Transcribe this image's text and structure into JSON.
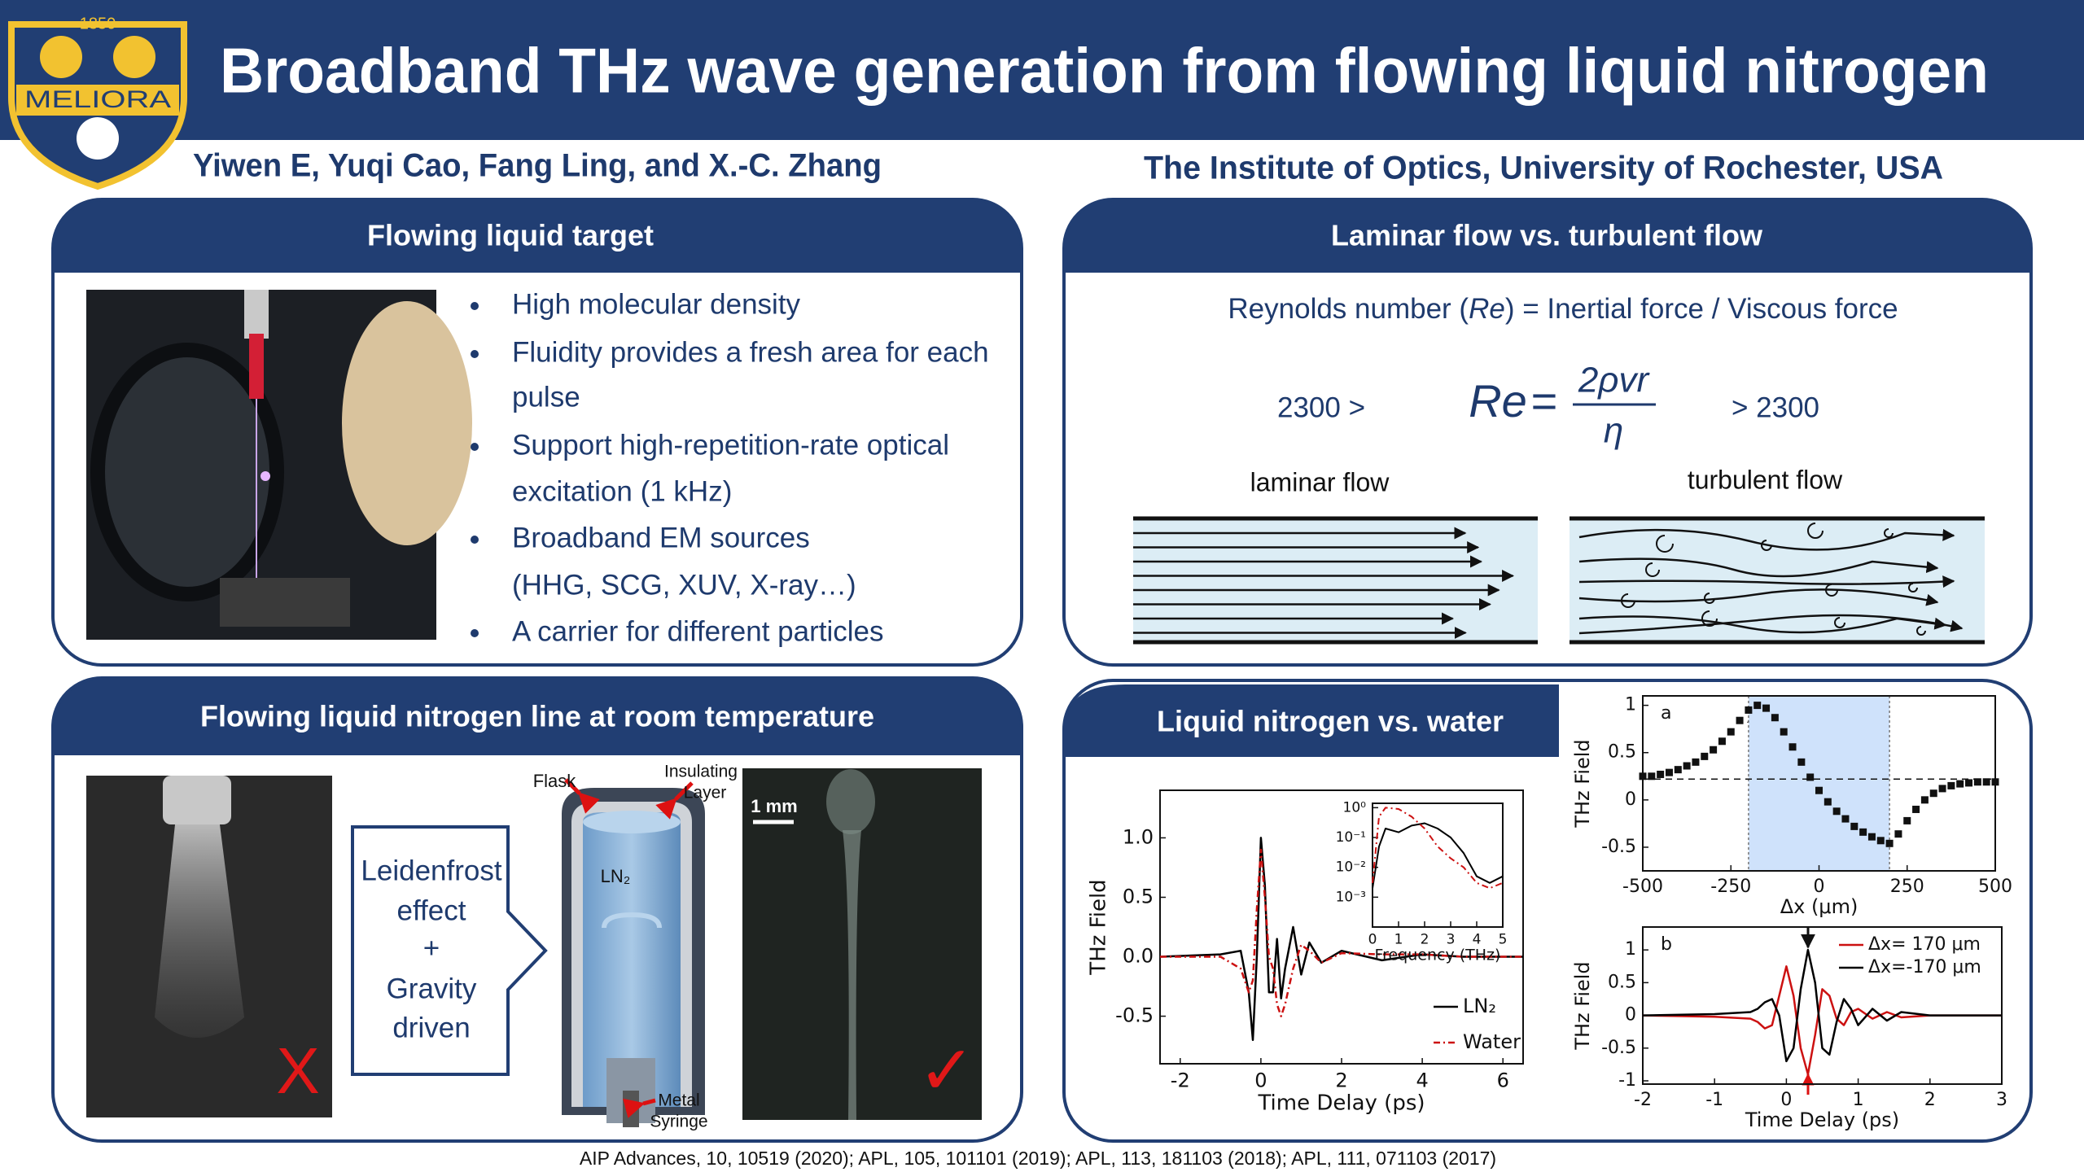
{
  "logo": {
    "year": "1850",
    "motto": "MELIORA"
  },
  "header": {
    "title": "Broadband THz wave generation from flowing liquid nitrogen",
    "authors": "Yiwen E, Yuqi Cao, Fang Ling, and X.-C. Zhang",
    "affiliation": "The Institute of Optics, University of Rochester, USA"
  },
  "panels": {
    "target": {
      "heading": "Flowing liquid target",
      "bullets": [
        [
          "High molecular density"
        ],
        [
          "Fluidity provides a fresh area for each",
          "pulse"
        ],
        [
          "Support high-repetition-rate optical",
          "excitation (1 kHz)"
        ],
        [
          "Broadband EM sources",
          "(HHG, SCG, XUV, X-ray…)"
        ],
        [
          "A carrier for different particles"
        ]
      ]
    },
    "flow": {
      "heading": "Laminar flow vs. turbulent flow",
      "reynolds": {
        "before": "Reynolds number (",
        "symbol": "Re",
        "after": ") = Inertial force / Viscous force"
      },
      "laminar_condition": "2300 >",
      "turbulent_condition": "> 2300",
      "equation": {
        "lhs": "Re",
        "equals": "=",
        "numerator": "2ρvr",
        "denominator": "η"
      },
      "laminar_label": "laminar flow",
      "turbulent_label": "turbulent flow"
    },
    "line": {
      "heading": "Flowing liquid nitrogen line at room temperature",
      "mechanism": [
        "Leidenfrost",
        "effect",
        "+",
        "Gravity",
        "driven"
      ],
      "labels": {
        "flask": "Flask",
        "insulating": [
          "Insulating",
          "Layer"
        ],
        "ln2": "LN₂",
        "syringe": [
          "Metal",
          "Syringe"
        ]
      },
      "scale_bar": "1 mm",
      "fail_mark": "X",
      "ok_mark": "✓"
    },
    "comparison": {
      "heading": "Liquid nitrogen vs. water"
    }
  },
  "chart_data": [
    {
      "type": "line",
      "xlabel": "Time Delay (ps)",
      "ylabel": "THz Field",
      "x": [
        -2.5,
        -1,
        -0.5,
        -0.3,
        -0.2,
        -0.1,
        0,
        0.1,
        0.2,
        0.3,
        0.4,
        0.5,
        0.6,
        0.8,
        1,
        1.2,
        1.5,
        2,
        3,
        4,
        5,
        6.5
      ],
      "series": [
        {
          "name": "LN₂",
          "color": "#000000",
          "values": [
            0,
            0.02,
            0.05,
            -0.3,
            -0.7,
            0.0,
            1.0,
            0.6,
            -0.3,
            -0.3,
            0.15,
            -0.35,
            -0.1,
            0.25,
            -0.15,
            0.12,
            -0.05,
            0.05,
            -0.03,
            0.02,
            0,
            0
          ]
        },
        {
          "name": "Water",
          "color": "#cc1111",
          "dash": true,
          "values": [
            0,
            0.0,
            -0.1,
            -0.3,
            -0.2,
            0.4,
            0.9,
            0.5,
            0.0,
            -0.1,
            -0.4,
            -0.5,
            -0.4,
            -0.1,
            0.1,
            0.05,
            -0.05,
            0.03,
            0.02,
            0.02,
            0,
            0
          ]
        }
      ],
      "xlim": [
        -2.5,
        6.5
      ],
      "ylim": [
        -0.9,
        1.4
      ],
      "xticks": [
        -2,
        0,
        2,
        4,
        6
      ],
      "yticks": [
        {
          "value": 1,
          "label": "1.0"
        },
        0.5,
        {
          "value": 0,
          "label": "0.0"
        },
        -0.5
      ],
      "legend": "lower right"
    },
    {
      "type": "line",
      "xlabel": "Frequency (THz)",
      "log_y": true,
      "x": [
        0,
        0.25,
        0.5,
        1,
        1.5,
        2,
        2.5,
        3,
        3.5,
        4,
        4.5,
        5
      ],
      "series": [
        {
          "color": "#000000",
          "values": [
            0.002,
            0.05,
            0.2,
            0.15,
            0.25,
            0.3,
            0.2,
            0.1,
            0.03,
            0.005,
            0.003,
            0.005
          ]
        },
        {
          "color": "#cc1111",
          "dash": true,
          "values": [
            0.003,
            0.5,
            1,
            0.9,
            0.5,
            0.2,
            0.05,
            0.02,
            0.01,
            0.003,
            0.002,
            0.003
          ]
        }
      ],
      "xlim": [
        0,
        5
      ],
      "ylim": [
        0.0001,
        1.4
      ],
      "xticks": [
        0,
        1,
        2,
        3,
        4,
        5
      ],
      "yticks": [
        {
          "value": 1,
          "label": "10⁰"
        },
        {
          "value": 0.1,
          "label": "10⁻¹"
        },
        {
          "value": 0.01,
          "label": "10⁻²"
        },
        {
          "value": 0.001,
          "label": "10⁻³"
        }
      ]
    },
    {
      "type": "scatter",
      "panel_label": "a",
      "xlabel": "Δx (μm)",
      "ylabel": "THz Field",
      "x": [
        -500,
        -475,
        -450,
        -425,
        -400,
        -375,
        -350,
        -325,
        -300,
        -275,
        -250,
        -225,
        -200,
        -175,
        -150,
        -125,
        -100,
        -75,
        -50,
        -25,
        0,
        25,
        50,
        75,
        100,
        125,
        150,
        175,
        200,
        225,
        250,
        275,
        300,
        325,
        350,
        375,
        400,
        425,
        450,
        475,
        500
      ],
      "values": [
        0.25,
        0.25,
        0.27,
        0.29,
        0.32,
        0.36,
        0.4,
        0.46,
        0.53,
        0.62,
        0.72,
        0.84,
        0.95,
        1.0,
        0.97,
        0.87,
        0.72,
        0.56,
        0.4,
        0.24,
        0.1,
        -0.02,
        -0.12,
        -0.2,
        -0.28,
        -0.34,
        -0.39,
        -0.43,
        -0.46,
        -0.36,
        -0.22,
        -0.1,
        0.0,
        0.07,
        0.12,
        0.15,
        0.17,
        0.18,
        0.19,
        0.19,
        0.19
      ],
      "color": "#111111",
      "xlim": [
        -500,
        500
      ],
      "ylim": [
        -0.75,
        1.1
      ],
      "xticks": [
        -500,
        -250,
        0,
        250,
        500
      ],
      "yticks": [
        1,
        0.5,
        0,
        -0.5
      ],
      "reference_y": 0.22,
      "shaded_x": [
        -200,
        200
      ],
      "shade_color": "#cfe2fb"
    },
    {
      "type": "line",
      "panel_label": "b",
      "xlabel": "Time Delay (ps)",
      "ylabel": "THz Field",
      "x": [
        -2,
        -1,
        -0.5,
        -0.4,
        -0.3,
        -0.2,
        -0.1,
        0,
        0.1,
        0.2,
        0.3,
        0.4,
        0.5,
        0.6,
        0.7,
        0.8,
        0.9,
        1.0,
        1.2,
        1.4,
        1.6,
        2,
        3
      ],
      "series": [
        {
          "name": "Δx= 170 μm",
          "color": "#cc1111",
          "values": [
            0,
            -0.02,
            -0.05,
            -0.1,
            -0.2,
            -0.15,
            0.3,
            0.75,
            0.3,
            -0.5,
            -0.9,
            -0.3,
            0.4,
            0.3,
            -0.05,
            -0.15,
            0.05,
            0.1,
            -0.05,
            0.05,
            -0.03,
            0,
            0
          ]
        },
        {
          "name": "Δx=-170 μm",
          "color": "#000000",
          "values": [
            0,
            0.02,
            0.05,
            0.1,
            0.2,
            0.25,
            0.0,
            -0.7,
            -0.5,
            0.4,
            1.0,
            0.5,
            -0.5,
            -0.6,
            -0.1,
            0.25,
            0.1,
            -0.15,
            0.1,
            -0.08,
            0.05,
            0,
            0
          ]
        }
      ],
      "xlim": [
        -2,
        3
      ],
      "ylim": [
        -1.05,
        1.35
      ],
      "xticks": [
        -2,
        -1,
        0,
        1,
        2,
        3
      ],
      "yticks": [
        1,
        0.5,
        0,
        -0.5,
        -1
      ],
      "legend": "upper right"
    }
  ],
  "footer": "AIP Advances, 10, 10519 (2020); APL, 105, 101101 (2019); APL, 113, 181103 (2018); APL, 111, 071103 (2017)"
}
